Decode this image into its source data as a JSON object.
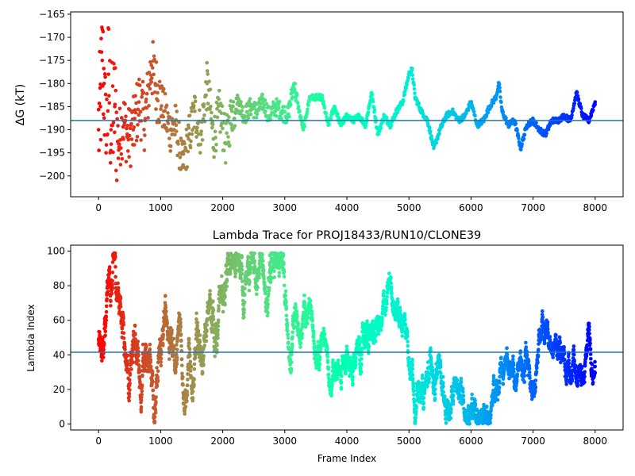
{
  "chart_data": [
    {
      "type": "scatter",
      "title": "",
      "xlabel": "",
      "ylabel": "ΔG (kT)",
      "xlim": [
        -450,
        8450
      ],
      "ylim": [
        -204.5,
        -164.5
      ],
      "x_ticks": [
        0,
        1000,
        2000,
        3000,
        4000,
        5000,
        6000,
        7000,
        8000
      ],
      "x_tick_labels": [
        "0",
        "1000",
        "2000",
        "3000",
        "4000",
        "5000",
        "6000",
        "7000",
        "8000"
      ],
      "y_ticks": [
        -200,
        -195,
        -190,
        -185,
        -180,
        -175,
        -170,
        -165
      ],
      "y_tick_labels": [
        "−200",
        "−195",
        "−190",
        "−185",
        "−180",
        "−175",
        "−170",
        "−165"
      ],
      "colormap": "rainbow (red at early frames → violet at late frames)",
      "hline": -188.0,
      "hline_color": "#1f77b4",
      "grid": false,
      "series": [
        {
          "x": [
            0,
            30,
            60,
            90,
            120,
            160,
            200,
            260,
            320,
            400,
            480,
            560,
            650,
            750,
            850,
            950,
            1050,
            1150,
            1250,
            1350,
            1450,
            1550,
            1650,
            1750,
            1850,
            1950,
            2050,
            2150,
            2250,
            2350,
            2450,
            2550,
            2650,
            2750,
            2850,
            2950,
            3050,
            3150,
            3200,
            3300,
            3400,
            3500,
            3600,
            3700,
            3800,
            3900,
            4000,
            4100,
            4200,
            4300,
            4400,
            4500,
            4600,
            4700,
            4800,
            4900,
            5000,
            5050,
            5100,
            5200,
            5300,
            5400,
            5500,
            5600,
            5700,
            5800,
            5900,
            6000,
            6100,
            6200,
            6300,
            6400,
            6450,
            6500,
            6600,
            6700,
            6800,
            6900,
            7000,
            7100,
            7200,
            7300,
            7400,
            7500,
            7600,
            7700,
            7800,
            7900,
            8000
          ],
          "y": [
            -190,
            -185,
            -175,
            -180,
            -195,
            -178,
            -190,
            -185,
            -193,
            -188,
            -192,
            -190,
            -184,
            -188,
            -176,
            -182,
            -186,
            -190,
            -189,
            -198,
            -192,
            -186,
            -191,
            -180,
            -192,
            -186,
            -193,
            -186,
            -184,
            -187,
            -185,
            -186,
            -184,
            -187,
            -185,
            -186,
            -187,
            -180,
            -184,
            -190,
            -183,
            -183,
            -183,
            -189,
            -185,
            -189,
            -187,
            -188,
            -187,
            -189,
            -182,
            -191,
            -187,
            -189,
            -186,
            -184,
            -178,
            -177,
            -183,
            -186,
            -188,
            -194,
            -190,
            -187,
            -186,
            -188,
            -187,
            -184,
            -189,
            -188,
            -185,
            -183,
            -180,
            -186,
            -189,
            -188,
            -194,
            -189,
            -188,
            -190,
            -191,
            -188,
            -188,
            -187,
            -188,
            -182,
            -187,
            -188,
            -184
          ]
        }
      ]
    },
    {
      "type": "scatter",
      "title": "Lambda Trace for PROJ18433/RUN10/CLONE39",
      "xlabel": "Frame Index",
      "ylabel": "Lambda Index",
      "xlim": [
        -450,
        8450
      ],
      "ylim": [
        -3.5,
        103.5
      ],
      "x_ticks": [
        0,
        1000,
        2000,
        3000,
        4000,
        5000,
        6000,
        7000,
        8000
      ],
      "x_tick_labels": [
        "0",
        "1000",
        "2000",
        "3000",
        "4000",
        "5000",
        "6000",
        "7000",
        "8000"
      ],
      "y_ticks": [
        0,
        20,
        40,
        60,
        80,
        100
      ],
      "y_tick_labels": [
        "0",
        "20",
        "40",
        "60",
        "80",
        "100"
      ],
      "colormap": "rainbow (red at early frames → violet at late frames)",
      "hline": 41.5,
      "hline_color": "#1f77b4",
      "grid": false,
      "lambda_range": [
        0,
        99
      ],
      "frame_range": [
        0,
        8000
      ]
    }
  ]
}
